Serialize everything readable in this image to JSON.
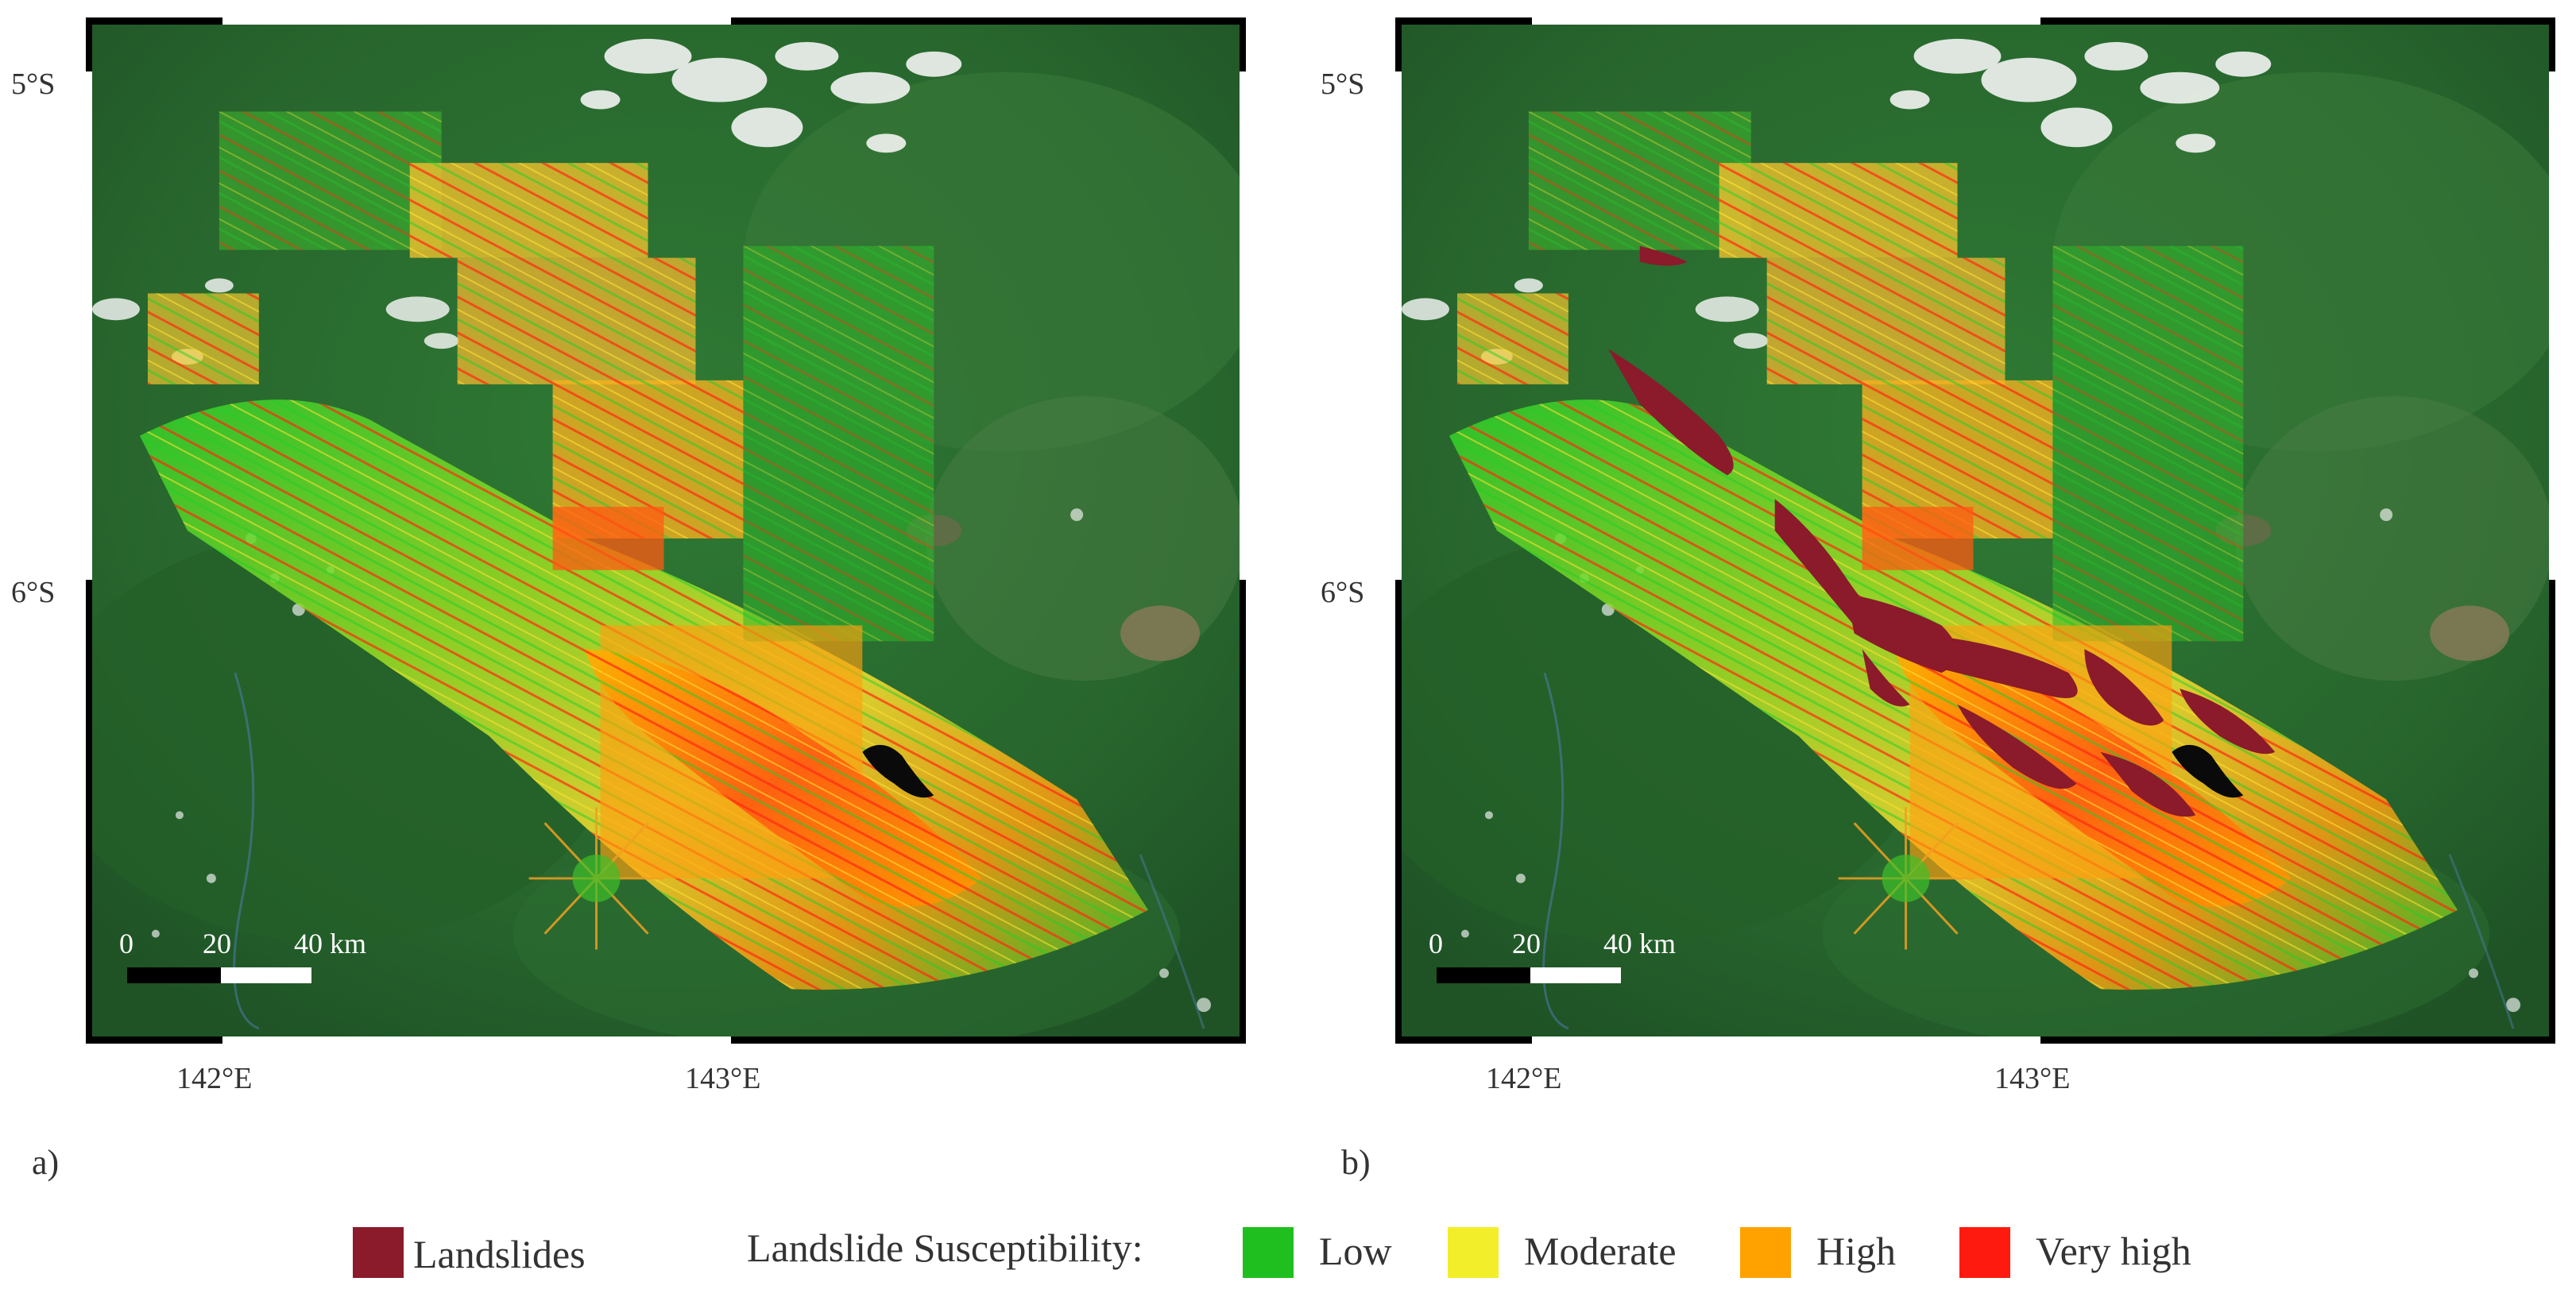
{
  "panels": [
    {
      "letter": "a)",
      "lat_labels": [
        "5°S",
        "6°S"
      ],
      "lon_labels": [
        "142°E",
        "143°E"
      ],
      "scale_labels": [
        "0",
        "20",
        "40 km"
      ],
      "show_landslides": false
    },
    {
      "letter": "b)",
      "lat_labels": [
        "5°S",
        "6°S"
      ],
      "lon_labels": [
        "142°E",
        "143°E"
      ],
      "scale_labels": [
        "0",
        "20",
        "40 km"
      ],
      "show_landslides": true
    }
  ],
  "legend": {
    "landslides_label": "Landslides",
    "landslides_color": "#8b1a2b",
    "susceptibility_title": "Landslide Susceptibility:",
    "classes": [
      {
        "label": "Low",
        "color": "#1fbf1f"
      },
      {
        "label": "Moderate",
        "color": "#f2ee2a"
      },
      {
        "label": "High",
        "color": "#ffa200"
      },
      {
        "label": "Very high",
        "color": "#ff1a0f"
      }
    ]
  },
  "colors": {
    "base_forest": "#2a6b2f",
    "clouds": "#f2f4f2",
    "lake": "#0a0a0a"
  }
}
